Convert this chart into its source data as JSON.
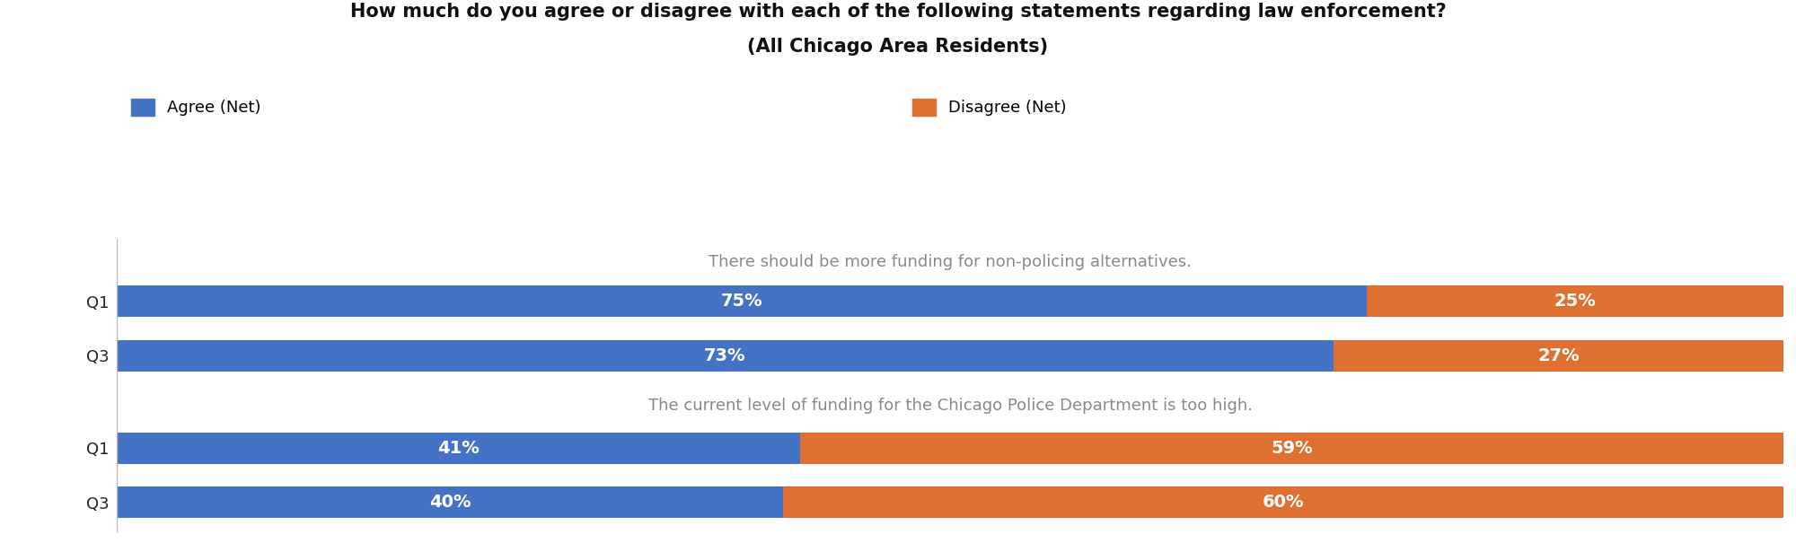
{
  "title_line1": "How much do you agree or disagree with each of the following statements regarding law enforcement?",
  "title_line2": "(All Chicago Area Residents)",
  "legend_agree": "Agree (Net)",
  "legend_disagree": "Disagree (Net)",
  "color_agree": "#4472C4",
  "color_disagree": "#E07030",
  "section1_title": "There should be more funding for non-policing alternatives.",
  "section2_title": "The current level of funding for the Chicago Police Department is too high.",
  "bars": [
    {
      "group": 1,
      "label": "Q1",
      "agree": 75,
      "disagree": 25
    },
    {
      "group": 1,
      "label": "Q3",
      "agree": 73,
      "disagree": 27
    },
    {
      "group": 2,
      "label": "Q1",
      "agree": 41,
      "disagree": 59
    },
    {
      "group": 2,
      "label": "Q3",
      "agree": 40,
      "disagree": 60
    }
  ],
  "bar_height": 0.58,
  "label_fontsize": 14,
  "title_fontsize": 15,
  "section_title_fontsize": 13,
  "legend_fontsize": 13,
  "ytick_fontsize": 13,
  "background_color": "#ffffff",
  "text_color": "#222222",
  "section_title_color": "#888888"
}
